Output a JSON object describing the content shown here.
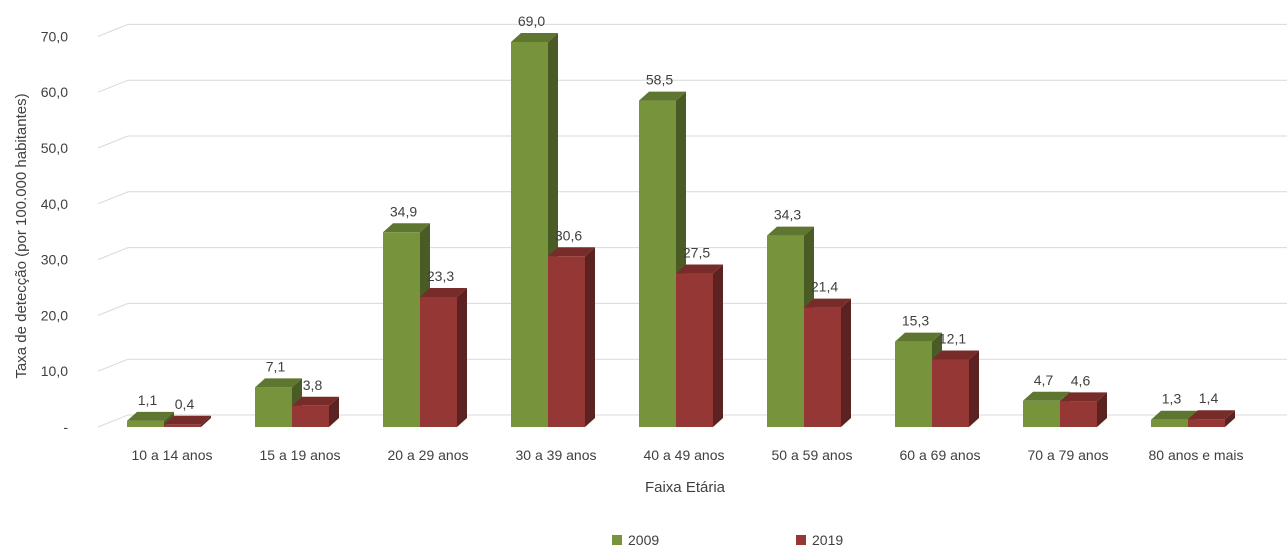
{
  "chart_data": {
    "type": "bar",
    "style": "3d-clustered-column",
    "title": "",
    "xlabel": "Faixa Etária",
    "ylabel": "Taxa de detecção (por 100.000 habitantes)",
    "ylim": [
      0,
      75
    ],
    "yticks": [
      0,
      10,
      20,
      30,
      40,
      50,
      60,
      70
    ],
    "ytick_labels": [
      "-",
      "10,0",
      "20,0",
      "30,0",
      "40,0",
      "50,0",
      "60,0",
      "70,0"
    ],
    "grid": true,
    "legend_position": "bottom",
    "categories": [
      "10 a 14 anos",
      "15 a 19 anos",
      "20 a 29 anos",
      "30 a 39 anos",
      "40 a 49 anos",
      "50 a 59 anos",
      "60 a 69 anos",
      "70 a 79 anos",
      "80 anos e mais"
    ],
    "series": [
      {
        "name": "2009",
        "color": "#77933c",
        "values": [
          1.1,
          7.1,
          34.9,
          69.0,
          58.5,
          34.3,
          15.3,
          4.7,
          1.3
        ],
        "labels": [
          "1,1",
          "7,1",
          "34,9",
          "69,0",
          "58,5",
          "34,3",
          "15,3",
          "4,7",
          "1,3"
        ]
      },
      {
        "name": "2019",
        "color": "#953735",
        "values": [
          0.4,
          3.8,
          23.3,
          30.6,
          27.5,
          21.4,
          12.1,
          4.6,
          1.4
        ],
        "labels": [
          "0,4",
          "3,8",
          "23,3",
          "30,6",
          "27,5",
          "21,4",
          "12,1",
          "4,6",
          "1,4"
        ]
      }
    ]
  }
}
